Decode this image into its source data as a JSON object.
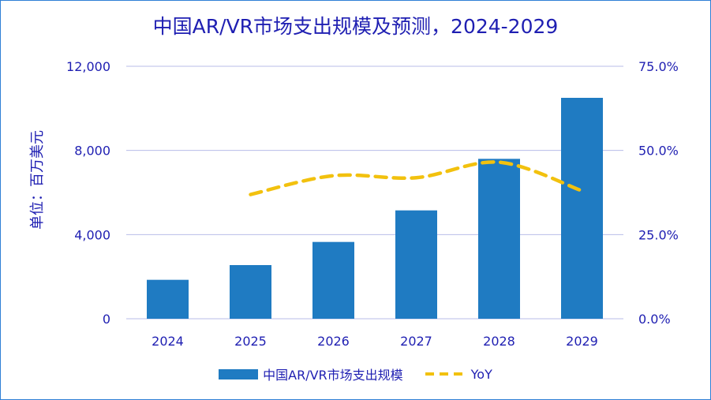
{
  "chart_data": {
    "type": "bar",
    "title": "中国AR/VR市场支出规模及预测，2024-2029",
    "ylabel": "单位：百万美元",
    "categories": [
      "2024",
      "2025",
      "2026",
      "2027",
      "2028",
      "2029"
    ],
    "series": [
      {
        "name": "中国AR/VR市场支出规模",
        "type": "bar",
        "axis": "left",
        "color": "#1f7bc2",
        "values": [
          1850,
          2550,
          3650,
          5150,
          7600,
          10500
        ]
      },
      {
        "name": "YoY",
        "type": "line",
        "axis": "right",
        "style": "dashed",
        "color": "#f2c10e",
        "values": [
          null,
          36.9,
          42.5,
          41.9,
          46.5,
          38.0
        ]
      }
    ],
    "y_left": {
      "range": [
        0,
        12000
      ],
      "ticks": [
        "0",
        "4,000",
        "8,000",
        "12,000"
      ],
      "tick_values": [
        0,
        4000,
        8000,
        12000
      ]
    },
    "y_right": {
      "range": [
        0,
        75
      ],
      "ticks": [
        "0.0%",
        "25.0%",
        "50.0%",
        "75.0%"
      ],
      "tick_values": [
        0,
        25,
        50,
        75
      ]
    },
    "grid": true,
    "legend_position": "bottom",
    "text_color": "#1f1fb2",
    "grid_color": "#b8bde8"
  }
}
